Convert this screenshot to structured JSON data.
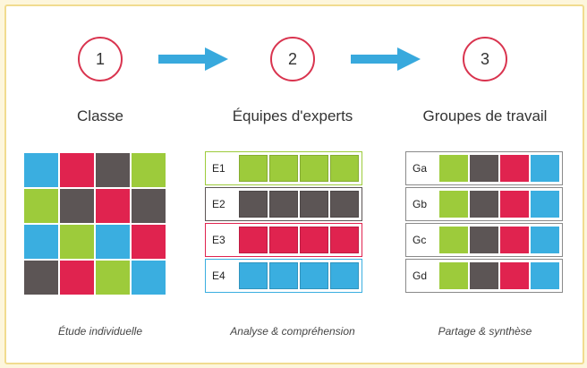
{
  "colors": {
    "blue": "#3aaee0",
    "red": "#e0234f",
    "gray": "#5c5555",
    "green": "#9dcb3b",
    "circle_border": "#d9344f",
    "arrow": "#38a9dd"
  },
  "steps": [
    {
      "number": "1",
      "heading": "Classe",
      "caption": "Étude individuelle"
    },
    {
      "number": "2",
      "heading": "Équipes d'experts",
      "caption": "Analyse & compréhension"
    },
    {
      "number": "3",
      "heading": "Groupes de travail",
      "caption": "Partage & synthèse"
    }
  ],
  "classe_grid": [
    [
      "blue",
      "red",
      "gray",
      "green"
    ],
    [
      "green",
      "gray",
      "red",
      "gray"
    ],
    [
      "blue",
      "green",
      "blue",
      "red"
    ],
    [
      "gray",
      "red",
      "green",
      "blue"
    ]
  ],
  "experts": [
    {
      "label": "E1",
      "color": "green"
    },
    {
      "label": "E2",
      "color": "gray"
    },
    {
      "label": "E3",
      "color": "red"
    },
    {
      "label": "E4",
      "color": "blue"
    }
  ],
  "groups": [
    {
      "label": "Ga",
      "colors": [
        "green",
        "gray",
        "red",
        "blue"
      ]
    },
    {
      "label": "Gb",
      "colors": [
        "green",
        "gray",
        "red",
        "blue"
      ]
    },
    {
      "label": "Gc",
      "colors": [
        "green",
        "gray",
        "red",
        "blue"
      ]
    },
    {
      "label": "Gd",
      "colors": [
        "green",
        "gray",
        "red",
        "blue"
      ]
    }
  ]
}
